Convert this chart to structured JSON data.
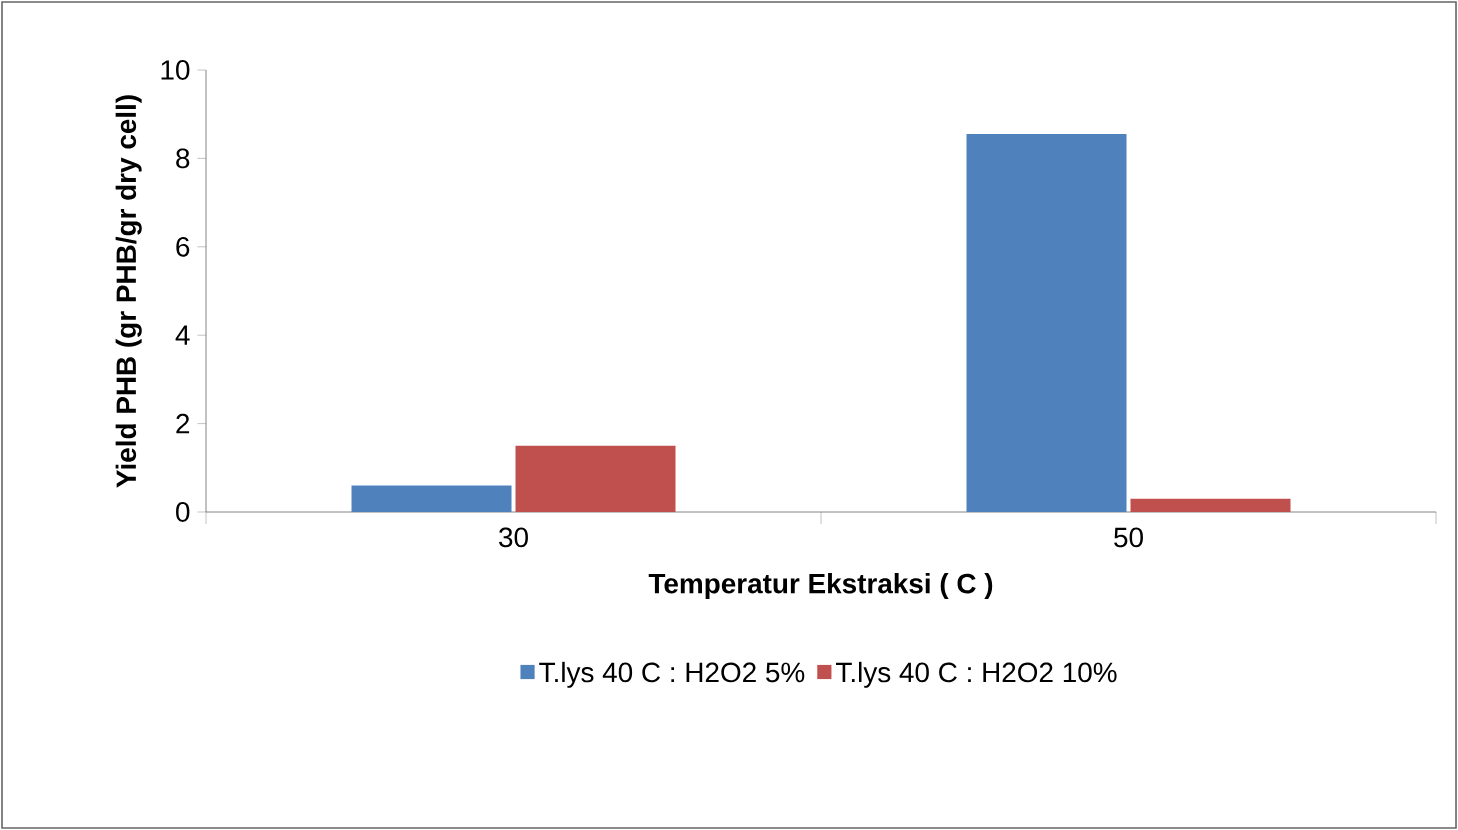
{
  "chart_data": {
    "type": "bar",
    "xlabel": "Temperatur Ekstraksi ( C )",
    "ylabel": "Yield PHB (gr PHB/gr dry cell)",
    "categories": [
      "30",
      "50"
    ],
    "series": [
      {
        "name": "T.lys 40 C : H2O2 5%",
        "color": "#4f81bd",
        "values": [
          0.6,
          8.55
        ]
      },
      {
        "name": "T.lys 40 C : H2O2 10%",
        "color": "#c0504d",
        "values": [
          1.5,
          0.3
        ]
      }
    ],
    "ylim": [
      0,
      10
    ],
    "yticks": [
      0,
      2,
      4,
      6,
      8,
      10
    ],
    "legend": "bottom",
    "grid": false
  }
}
